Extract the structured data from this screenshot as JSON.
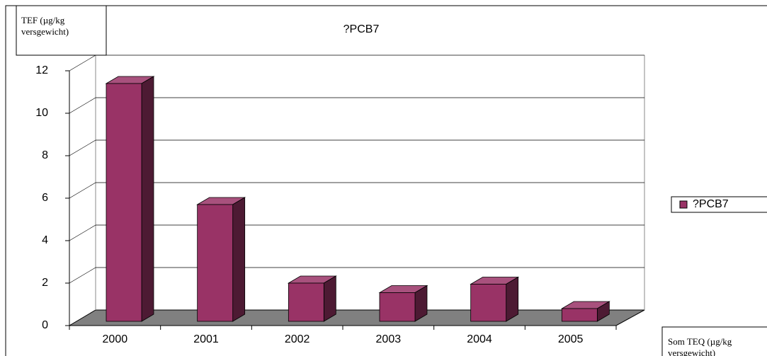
{
  "chart_data": {
    "type": "bar3d",
    "title": "?PCB7",
    "ylabel": [
      "TEF (µg/kg",
      "versgewicht)"
    ],
    "xlabel": [
      "Som TEQ (µg/kg",
      "versgewicht)"
    ],
    "categories": [
      "2000",
      "2001",
      "2002",
      "2003",
      "2004",
      "2005"
    ],
    "series": [
      {
        "name": "?PCB7",
        "color": "#993366",
        "values": [
          11.2,
          5.5,
          1.8,
          1.35,
          1.75,
          0.6
        ]
      }
    ],
    "ylim": [
      0,
      12
    ],
    "yticks": [
      0,
      2,
      4,
      6,
      8,
      10,
      12
    ],
    "grid": true,
    "legend": "right"
  }
}
